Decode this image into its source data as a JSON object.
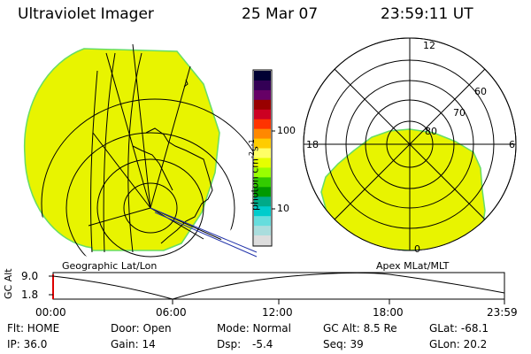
{
  "header": {
    "instrument": "Ultraviolet Imager",
    "date": "25 Mar 07",
    "time": "23:59:11 UT"
  },
  "colorbar": {
    "unit_label": "photon cm",
    "unit_sup1": "-2",
    "unit_mid": "s",
    "unit_sup2": "-1",
    "tick_high": "100",
    "tick_low": "10",
    "colors": [
      "#000033",
      "#330055",
      "#660066",
      "#990000",
      "#cc0022",
      "#ff3300",
      "#ff8800",
      "#ffcc00",
      "#ffff66",
      "#e6ff00",
      "#99ff00",
      "#33cc00",
      "#009900",
      "#00aa88",
      "#00cccc",
      "#66dddd",
      "#aadddd",
      "#dddddd"
    ]
  },
  "panels": {
    "left_label": "Geographic Lat/Lon",
    "right_label": "Apex MLat/MLT"
  },
  "polar": {
    "mlt_top": "12",
    "mlt_left": "18",
    "mlt_right": "6",
    "mlt_bottom": "0",
    "lat_60": "60",
    "lat_70": "70",
    "lat_80": "80"
  },
  "altitude": {
    "axis_label": "GC Alt",
    "tick_high": "9.0",
    "tick_low": "1.8",
    "times": [
      "00:00",
      "06:00",
      "12:00",
      "18:00",
      "23:59"
    ]
  },
  "status": {
    "flt": "Flt: HOME",
    "door": "Door: Open",
    "mode": "Mode: Normal",
    "gcalt": "GC Alt: 8.5 Re",
    "glat": "GLat: -68.1",
    "ip": "IP: 36.0",
    "gain": "Gain: 14",
    "dsp_label": "Dsp:",
    "dsp_value": "-5.4",
    "seq": "Seq: 39",
    "glon": "GLon: 20.2"
  },
  "colors": {
    "auroral_fill": "#e8f400",
    "fill_edge": "#66dd66",
    "altitude_start_marker": "#dd0000"
  }
}
